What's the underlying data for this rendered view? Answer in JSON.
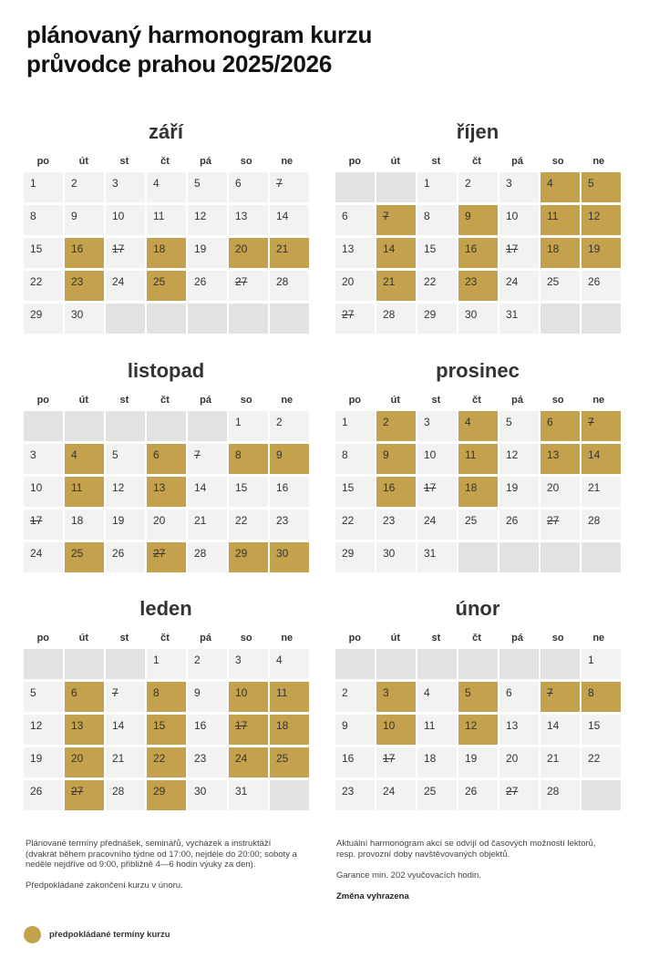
{
  "title": {
    "line1": "plánovaný harmonogram kurzu",
    "line2": "průvodce prahou 2025/2026"
  },
  "weekdays": [
    "po",
    "út",
    "st",
    "čt",
    "pá",
    "so",
    "ne"
  ],
  "colors": {
    "highlight": "#c4a24d",
    "empty": "#e2e3e1",
    "normal": "#f2f2f2"
  },
  "months": [
    {
      "name": "září",
      "cells": [
        {
          "d": "1"
        },
        {
          "d": "2"
        },
        {
          "d": "3"
        },
        {
          "d": "4"
        },
        {
          "d": "5"
        },
        {
          "d": "6"
        },
        {
          "d": "7",
          "strike": true
        },
        {
          "d": "8"
        },
        {
          "d": "9"
        },
        {
          "d": "10"
        },
        {
          "d": "11"
        },
        {
          "d": "12"
        },
        {
          "d": "13"
        },
        {
          "d": "14"
        },
        {
          "d": "15"
        },
        {
          "d": "16",
          "hl": true
        },
        {
          "d": "17",
          "strike": true
        },
        {
          "d": "18",
          "hl": true
        },
        {
          "d": "19"
        },
        {
          "d": "20",
          "hl": true
        },
        {
          "d": "21",
          "hl": true
        },
        {
          "d": "22"
        },
        {
          "d": "23",
          "hl": true
        },
        {
          "d": "24"
        },
        {
          "d": "25",
          "hl": true
        },
        {
          "d": "26"
        },
        {
          "d": "27",
          "strike": true
        },
        {
          "d": "28"
        },
        {
          "d": "29"
        },
        {
          "d": "30"
        },
        {
          "d": ""
        },
        {
          "d": ""
        },
        {
          "d": ""
        },
        {
          "d": ""
        },
        {
          "d": ""
        }
      ]
    },
    {
      "name": "říjen",
      "cells": [
        {
          "d": ""
        },
        {
          "d": ""
        },
        {
          "d": "1"
        },
        {
          "d": "2"
        },
        {
          "d": "3"
        },
        {
          "d": "4",
          "hl": true
        },
        {
          "d": "5",
          "hl": true
        },
        {
          "d": "6"
        },
        {
          "d": "7",
          "hl": true,
          "strike": true
        },
        {
          "d": "8"
        },
        {
          "d": "9",
          "hl": true
        },
        {
          "d": "10"
        },
        {
          "d": "11",
          "hl": true
        },
        {
          "d": "12",
          "hl": true
        },
        {
          "d": "13"
        },
        {
          "d": "14",
          "hl": true
        },
        {
          "d": "15"
        },
        {
          "d": "16",
          "hl": true
        },
        {
          "d": "17",
          "strike": true
        },
        {
          "d": "18",
          "hl": true
        },
        {
          "d": "19",
          "hl": true
        },
        {
          "d": "20"
        },
        {
          "d": "21",
          "hl": true
        },
        {
          "d": "22"
        },
        {
          "d": "23",
          "hl": true
        },
        {
          "d": "24"
        },
        {
          "d": "25"
        },
        {
          "d": "26"
        },
        {
          "d": "27",
          "strike": true
        },
        {
          "d": "28"
        },
        {
          "d": "29"
        },
        {
          "d": "30"
        },
        {
          "d": "31"
        },
        {
          "d": ""
        },
        {
          "d": ""
        }
      ]
    },
    {
      "name": "listopad",
      "cells": [
        {
          "d": ""
        },
        {
          "d": ""
        },
        {
          "d": ""
        },
        {
          "d": ""
        },
        {
          "d": ""
        },
        {
          "d": "1"
        },
        {
          "d": "2"
        },
        {
          "d": "3"
        },
        {
          "d": "4",
          "hl": true
        },
        {
          "d": "5"
        },
        {
          "d": "6",
          "hl": true
        },
        {
          "d": "7",
          "strike": true
        },
        {
          "d": "8",
          "hl": true
        },
        {
          "d": "9",
          "hl": true
        },
        {
          "d": "10"
        },
        {
          "d": "11",
          "hl": true
        },
        {
          "d": "12"
        },
        {
          "d": "13",
          "hl": true
        },
        {
          "d": "14"
        },
        {
          "d": "15"
        },
        {
          "d": "16"
        },
        {
          "d": "17",
          "strike": true
        },
        {
          "d": "18"
        },
        {
          "d": "19"
        },
        {
          "d": "20"
        },
        {
          "d": "21"
        },
        {
          "d": "22"
        },
        {
          "d": "23"
        },
        {
          "d": "24"
        },
        {
          "d": "25",
          "hl": true
        },
        {
          "d": "26"
        },
        {
          "d": "27",
          "hl": true,
          "strike": true
        },
        {
          "d": "28"
        },
        {
          "d": "29",
          "hl": true
        },
        {
          "d": "30",
          "hl": true
        }
      ]
    },
    {
      "name": "prosinec",
      "cells": [
        {
          "d": "1"
        },
        {
          "d": "2",
          "hl": true
        },
        {
          "d": "3"
        },
        {
          "d": "4",
          "hl": true
        },
        {
          "d": "5"
        },
        {
          "d": "6",
          "hl": true
        },
        {
          "d": "7",
          "hl": true,
          "strike": true
        },
        {
          "d": "8"
        },
        {
          "d": "9",
          "hl": true
        },
        {
          "d": "10"
        },
        {
          "d": "11",
          "hl": true
        },
        {
          "d": "12"
        },
        {
          "d": "13",
          "hl": true
        },
        {
          "d": "14",
          "hl": true
        },
        {
          "d": "15"
        },
        {
          "d": "16",
          "hl": true
        },
        {
          "d": "17",
          "strike": true
        },
        {
          "d": "18",
          "hl": true
        },
        {
          "d": "19"
        },
        {
          "d": "20"
        },
        {
          "d": "21"
        },
        {
          "d": "22"
        },
        {
          "d": "23"
        },
        {
          "d": "24"
        },
        {
          "d": "25"
        },
        {
          "d": "26"
        },
        {
          "d": "27",
          "strike": true
        },
        {
          "d": "28"
        },
        {
          "d": "29"
        },
        {
          "d": "30"
        },
        {
          "d": "31"
        },
        {
          "d": ""
        },
        {
          "d": ""
        },
        {
          "d": ""
        },
        {
          "d": ""
        }
      ]
    },
    {
      "name": "leden",
      "cells": [
        {
          "d": ""
        },
        {
          "d": ""
        },
        {
          "d": ""
        },
        {
          "d": "1"
        },
        {
          "d": "2"
        },
        {
          "d": "3"
        },
        {
          "d": "4"
        },
        {
          "d": "5"
        },
        {
          "d": "6",
          "hl": true
        },
        {
          "d": "7",
          "strike": true
        },
        {
          "d": "8",
          "hl": true
        },
        {
          "d": "9"
        },
        {
          "d": "10",
          "hl": true
        },
        {
          "d": "11",
          "hl": true
        },
        {
          "d": "12"
        },
        {
          "d": "13",
          "hl": true
        },
        {
          "d": "14"
        },
        {
          "d": "15",
          "hl": true
        },
        {
          "d": "16"
        },
        {
          "d": "17",
          "hl": true,
          "strike": true
        },
        {
          "d": "18",
          "hl": true
        },
        {
          "d": "19"
        },
        {
          "d": "20",
          "hl": true
        },
        {
          "d": "21"
        },
        {
          "d": "22",
          "hl": true
        },
        {
          "d": "23"
        },
        {
          "d": "24",
          "hl": true
        },
        {
          "d": "25",
          "hl": true
        },
        {
          "d": "26"
        },
        {
          "d": "27",
          "hl": true,
          "strike": true
        },
        {
          "d": "28"
        },
        {
          "d": "29",
          "hl": true
        },
        {
          "d": "30"
        },
        {
          "d": "31"
        },
        {
          "d": ""
        }
      ]
    },
    {
      "name": "únor",
      "cells": [
        {
          "d": ""
        },
        {
          "d": ""
        },
        {
          "d": ""
        },
        {
          "d": ""
        },
        {
          "d": ""
        },
        {
          "d": ""
        },
        {
          "d": "1"
        },
        {
          "d": "2"
        },
        {
          "d": "3",
          "hl": true
        },
        {
          "d": "4"
        },
        {
          "d": "5",
          "hl": true
        },
        {
          "d": "6"
        },
        {
          "d": "7",
          "hl": true,
          "strike": true
        },
        {
          "d": "8",
          "hl": true
        },
        {
          "d": "9"
        },
        {
          "d": "10",
          "hl": true
        },
        {
          "d": "11"
        },
        {
          "d": "12",
          "hl": true
        },
        {
          "d": "13"
        },
        {
          "d": "14"
        },
        {
          "d": "15"
        },
        {
          "d": "16"
        },
        {
          "d": "17",
          "strike": true
        },
        {
          "d": "18"
        },
        {
          "d": "19"
        },
        {
          "d": "20"
        },
        {
          "d": "21"
        },
        {
          "d": "22"
        },
        {
          "d": "23"
        },
        {
          "d": "24"
        },
        {
          "d": "25"
        },
        {
          "d": "26"
        },
        {
          "d": "27",
          "strike": true
        },
        {
          "d": "28"
        },
        {
          "d": ""
        }
      ]
    }
  ],
  "notes_left": {
    "p1": "Plánované termíny přednášek, seminářů, vycházek a instruktáží (dvakrát během pracovního týdne od 17:00, nejdéle do 20:00; soboty a neděle nejdříve od 9:00, přibližně 4—6 hodin výuky za den).",
    "p2": "Předpokládané zakončení kurzu v únoru."
  },
  "notes_right": {
    "p1": "Aktuální harmonogram akcí se odvíjí od časových možností lektorů, resp. provozní doby navštěvovaných objektů.",
    "p2": "Garance min. 202 vyučovacích hodin.",
    "p3": "Změna vyhrazena"
  },
  "legend": {
    "label": "předpokládané termíny kurzu"
  }
}
